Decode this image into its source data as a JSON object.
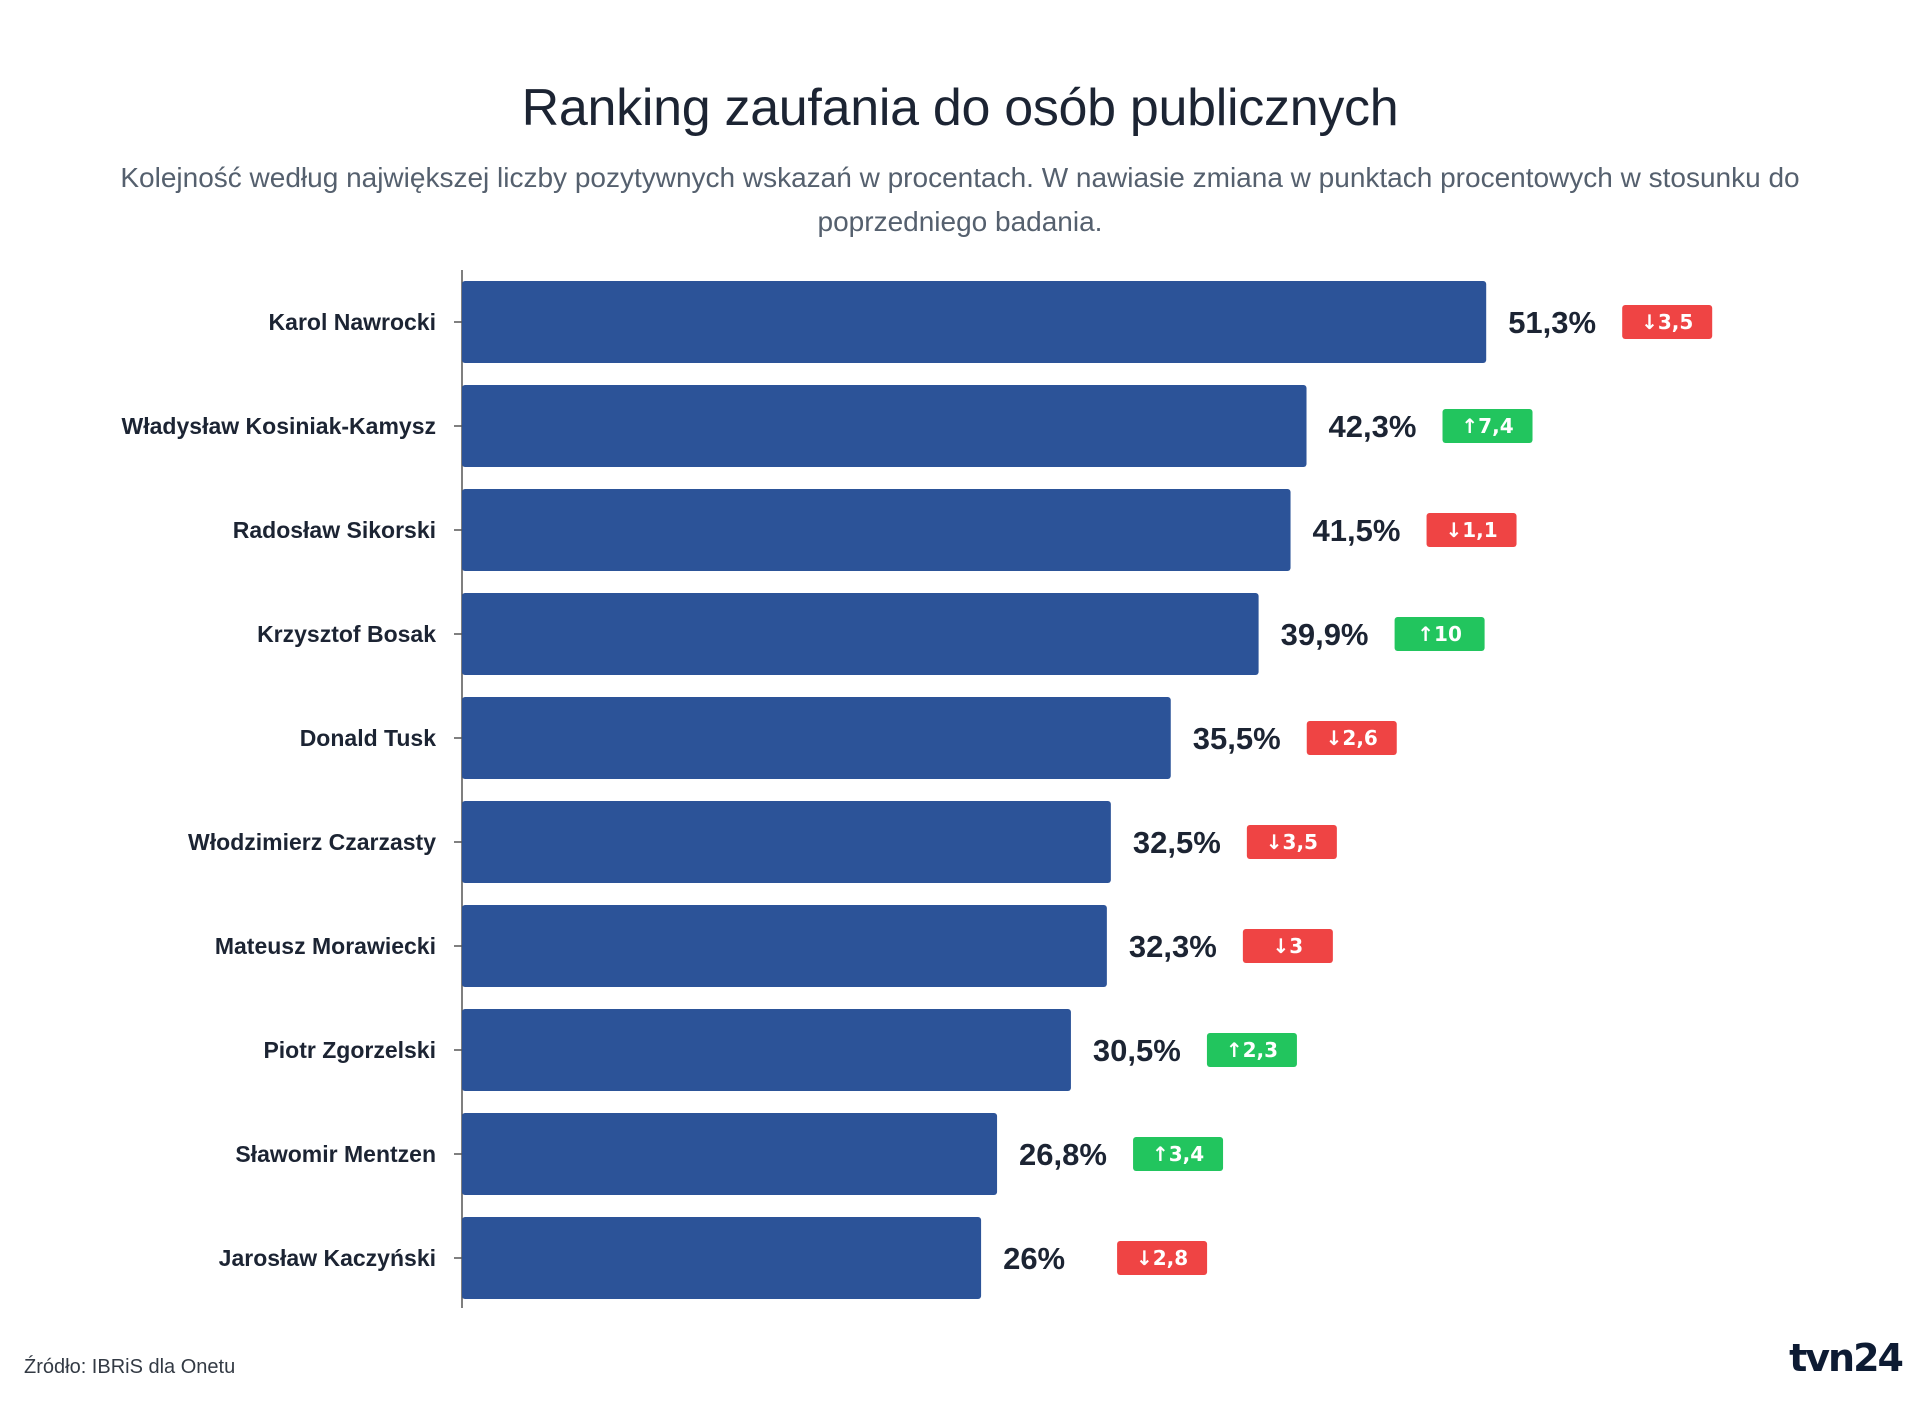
{
  "chart_data": {
    "type": "bar",
    "orientation": "horizontal",
    "title": "Ranking zaufania do osób publicznych",
    "subtitle": "Kolejność według największej liczby pozytywnych wskazań w procentach. W nawiasie zmiana w punktach procentowych w stosunku do poprzedniego badania.",
    "categories": [
      "Karol Nawrocki",
      "Władysław Kosiniak-Kamysz",
      "Radosław Sikorski",
      "Krzysztof Bosak",
      "Donald Tusk",
      "Włodzimierz Czarzasty",
      "Mateusz Morawiecki",
      "Piotr Zgorzelski",
      "Sławomir Mentzen",
      "Jarosław Kaczyński"
    ],
    "values": [
      51.3,
      42.3,
      41.5,
      39.9,
      35.5,
      32.5,
      32.3,
      30.5,
      26.8,
      26
    ],
    "value_labels": [
      "51,3%",
      "42,3%",
      "41,5%",
      "39,9%",
      "35,5%",
      "32,5%",
      "32,3%",
      "30,5%",
      "26,8%",
      "26%"
    ],
    "changes": [
      -3.5,
      7.4,
      -1.1,
      10,
      -2.6,
      -3.5,
      -3,
      2.3,
      3.4,
      -2.8
    ],
    "change_labels": [
      "↓3,5",
      "↑7,4",
      "↓1,1",
      "↑10",
      "↓2,6",
      "↓3,5",
      "↓3",
      "↑2,3",
      "↑3,4",
      "↓2,8"
    ],
    "xlim": [
      0,
      57
    ],
    "grid": false,
    "legend": "none"
  },
  "colors": {
    "bar": "#2c5398",
    "increase": "#22c55e",
    "decrease": "#ef4444",
    "axis": "#555555"
  },
  "footer": {
    "source": "Źródło: IBRiS dla Onetu",
    "logo": "tvn24"
  }
}
